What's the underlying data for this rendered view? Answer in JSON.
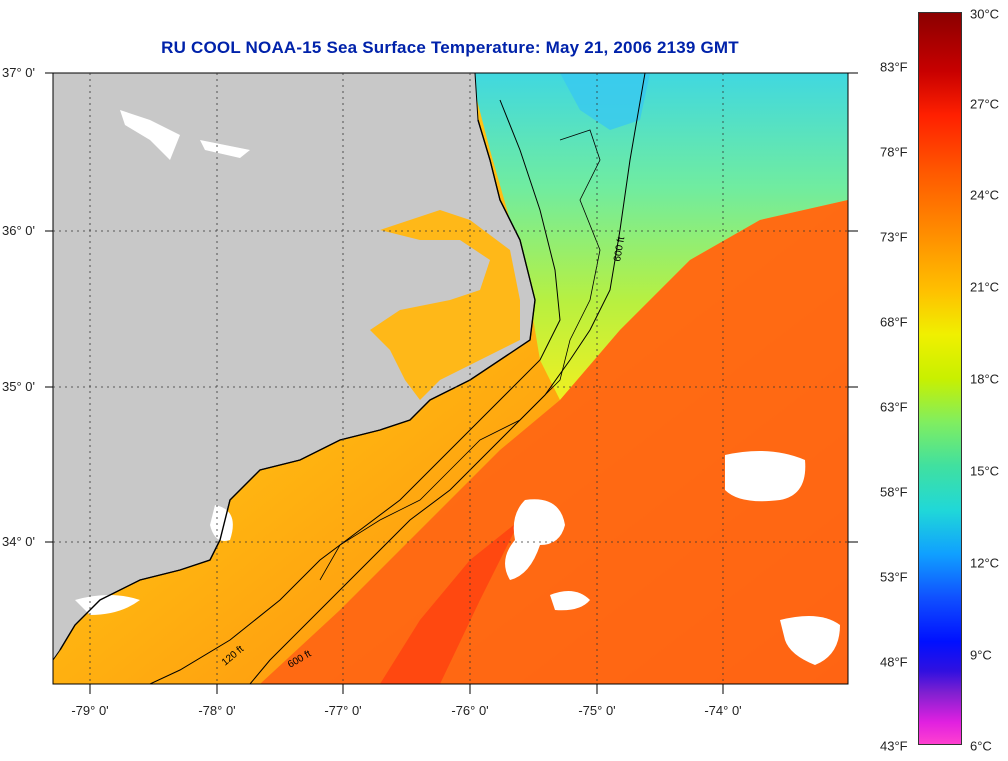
{
  "title": "RU COOL  NOAA-15  Sea Surface Temperature:  May 21, 2006 2139 GMT",
  "latitude_labels": [
    "37° 0'",
    "36° 0'",
    "35° 0'",
    "34° 0'"
  ],
  "longitude_labels": [
    "-79° 0'",
    "-78° 0'",
    "-77° 0'",
    "-76° 0'",
    "-75° 0'",
    "-74° 0'"
  ],
  "contour_labels": [
    "120 ft",
    "600 ft"
  ],
  "colorbar": {
    "fahrenheit_labels": [
      "83°F",
      "78°F",
      "73°F",
      "68°F",
      "63°F",
      "58°F",
      "53°F",
      "48°F",
      "43°F"
    ],
    "celsius_labels": [
      "30°C",
      "27°C",
      "24°C",
      "21°C",
      "18°C",
      "15°C",
      "12°C",
      "9°C",
      "6°C"
    ]
  },
  "colors": {
    "land": "#c8c8c8",
    "cloud": "#ffffff",
    "warm_water": "#ff6a10",
    "shelf_water": "#ffc020",
    "cool_water": "#60e8b0",
    "title": "#0022aa"
  }
}
